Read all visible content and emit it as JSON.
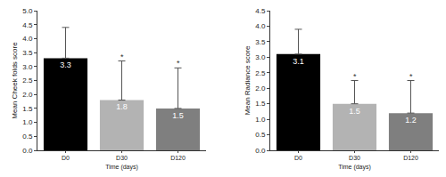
{
  "chart_data": [
    {
      "type": "bar",
      "x_label": "Time (days)",
      "y_label": "Mean Cheek folds score",
      "categories": [
        "D0",
        "D30",
        "D120"
      ],
      "values": [
        3.3,
        1.8,
        1.5
      ],
      "errors": [
        1.1,
        1.4,
        1.45
      ],
      "colors": [
        "#000000",
        "#b3b3b3",
        "#7f7f7f"
      ],
      "data_labels": true,
      "grid": false,
      "ylim": [
        0,
        5
      ],
      "yticks": [
        {
          "value": 0,
          "label": "0.0"
        },
        {
          "value": 0.5,
          "label": "0.5"
        },
        {
          "value": 1,
          "label": "1.0"
        },
        {
          "value": 1.5,
          "label": "1.5"
        },
        {
          "value": 2,
          "label": "2.0"
        },
        {
          "value": 2.5,
          "label": "2.5"
        },
        {
          "value": 3,
          "label": "3.0"
        },
        {
          "value": 3.5,
          "label": "3.5"
        },
        {
          "value": 4,
          "label": "4.0"
        },
        {
          "value": 4.5,
          "label": "4.5"
        },
        {
          "value": 5,
          "label": "5.0"
        }
      ],
      "annotations": [
        {
          "x": "D30",
          "text": "*"
        },
        {
          "x": "D120",
          "text": "*"
        }
      ]
    },
    {
      "type": "bar",
      "x_label": "Time (days)",
      "y_label": "Mean Radiance score",
      "categories": [
        "D0",
        "D30",
        "D120"
      ],
      "values": [
        3.1,
        1.5,
        1.2
      ],
      "errors": [
        0.8,
        0.75,
        1.05
      ],
      "colors": [
        "#000000",
        "#b3b3b3",
        "#7f7f7f"
      ],
      "data_labels": true,
      "grid": false,
      "ylim": [
        0,
        4.5
      ],
      "yticks": [
        {
          "value": 0,
          "label": "0.0"
        },
        {
          "value": 0.5,
          "label": "0.5"
        },
        {
          "value": 1,
          "label": "1.0"
        },
        {
          "value": 1.5,
          "label": "1.5"
        },
        {
          "value": 2,
          "label": "2.0"
        },
        {
          "value": 2.5,
          "label": "2.5"
        },
        {
          "value": 3,
          "label": "3.0"
        },
        {
          "value": 3.5,
          "label": "3.5"
        },
        {
          "value": 4,
          "label": "4.0"
        },
        {
          "value": 4.5,
          "label": "4.5"
        }
      ],
      "annotations": [
        {
          "x": "D30",
          "text": "*"
        },
        {
          "x": "D120",
          "text": "*"
        }
      ]
    }
  ]
}
